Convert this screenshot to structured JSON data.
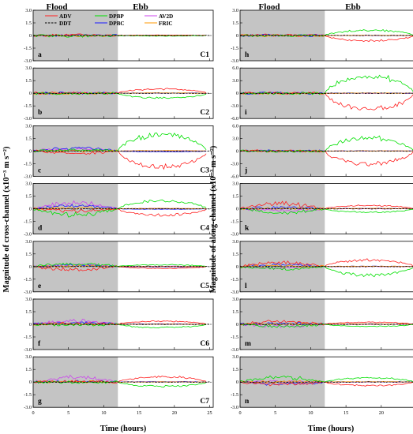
{
  "headers": {
    "left_flood": "Flood",
    "left_ebb": "Ebb",
    "right_flood": "Flood",
    "right_ebb": "Ebb"
  },
  "axes": {
    "left_ylabel": "Magnitude of cross-channel (x10⁻³ m s⁻²)",
    "right_ylabel": "Magnitude of along-channel (x10⁻³ m s⁻²)",
    "xlabel": "Time (hours)"
  },
  "legend": [
    {
      "label": "ADV",
      "color": "#ff2020",
      "dash": false
    },
    {
      "label": "DPBP",
      "color": "#00e000",
      "dash": false
    },
    {
      "label": "AV2D",
      "color": "#cc44ee",
      "dash": false
    },
    {
      "label": "DDT",
      "color": "#000000",
      "dash": true
    },
    {
      "label": "DPBC",
      "color": "#1a1aff",
      "dash": false
    },
    {
      "label": "FRIC",
      "color": "#ff9900",
      "dash": false
    }
  ],
  "chart_data": {
    "type": "line",
    "x_range": [
      0,
      25.5
    ],
    "x_ticks": [
      0,
      5,
      10,
      15,
      20,
      25
    ],
    "flood_shading_end": 12,
    "panels": [
      {
        "letter": "a",
        "tag": "C1",
        "column": "left",
        "ylim": [
          -3,
          3
        ],
        "y_ticks": [
          "3.0",
          "1.5",
          "0",
          "-1.5",
          "-3.0"
        ],
        "series": {
          "ADV": {
            "flood": 0.08,
            "ebb": 0.05
          },
          "DPBP": {
            "flood": -0.08,
            "ebb": -0.06
          },
          "AV2D": {
            "flood": 0.02,
            "ebb": 0.0
          },
          "DDT": {
            "flood": 0.0,
            "ebb": 0.0
          },
          "DPBC": {
            "flood": 0.04,
            "ebb": 0.02
          },
          "FRIC": {
            "flood": -0.03,
            "ebb": 0.02
          }
        }
      },
      {
        "letter": "b",
        "tag": "C2",
        "column": "left",
        "ylim": [
          -3,
          3
        ],
        "y_ticks": [
          "3.0",
          "1.5",
          "0",
          "-1.5",
          "-3.0"
        ],
        "series": {
          "ADV": {
            "flood": 0.05,
            "ebb": 0.6
          },
          "DPBP": {
            "flood": -0.05,
            "ebb": -0.65
          },
          "AV2D": {
            "flood": 0.02,
            "ebb": 0.02
          },
          "DDT": {
            "flood": 0.0,
            "ebb": 0.0
          },
          "DPBC": {
            "flood": 0.05,
            "ebb": 0.05
          },
          "FRIC": {
            "flood": -0.02,
            "ebb": 0.04
          }
        }
      },
      {
        "letter": "c",
        "tag": "C3",
        "column": "left",
        "ylim": [
          -3,
          3
        ],
        "y_ticks": [
          "3.0",
          "1.5",
          "0",
          "-1.5",
          "-3.0"
        ],
        "series": {
          "ADV": {
            "flood": -0.35,
            "ebb": -2.2
          },
          "DPBP": {
            "flood": 0.15,
            "ebb": 2.3
          },
          "AV2D": {
            "flood": 0.3,
            "ebb": 0.05
          },
          "DDT": {
            "flood": 0.0,
            "ebb": 0.0
          },
          "DPBC": {
            "flood": 0.45,
            "ebb": -0.1
          },
          "FRIC": {
            "flood": 0.0,
            "ebb": 0.05
          }
        }
      },
      {
        "letter": "d",
        "tag": "C4",
        "column": "left",
        "ylim": [
          -3,
          3
        ],
        "y_ticks": [
          "3.0",
          "1.5",
          "0",
          "-1.5",
          "-3.0"
        ],
        "series": {
          "ADV": {
            "flood": -0.35,
            "ebb": -0.9
          },
          "DPBP": {
            "flood": -0.9,
            "ebb": 1.1
          },
          "AV2D": {
            "flood": 0.9,
            "ebb": 0.05
          },
          "DDT": {
            "flood": 0.0,
            "ebb": 0.0
          },
          "DPBC": {
            "flood": 0.5,
            "ebb": -0.05
          },
          "FRIC": {
            "flood": 0.15,
            "ebb": 0.05
          }
        }
      },
      {
        "letter": "e",
        "tag": "C5",
        "column": "left",
        "ylim": [
          -3,
          3
        ],
        "y_ticks": [
          "3.0",
          "1.5",
          "0",
          "-1.5",
          "-3.0"
        ],
        "series": {
          "ADV": {
            "flood": -0.5,
            "ebb": -0.25
          },
          "DPBP": {
            "flood": 0.45,
            "ebb": 0.25
          },
          "AV2D": {
            "flood": 0.25,
            "ebb": 0.05
          },
          "DDT": {
            "flood": 0.0,
            "ebb": 0.0
          },
          "DPBC": {
            "flood": 0.2,
            "ebb": -0.05
          },
          "FRIC": {
            "flood": 0.05,
            "ebb": 0.02
          }
        }
      },
      {
        "letter": "f",
        "tag": "C6",
        "column": "left",
        "ylim": [
          -3,
          3
        ],
        "y_ticks": [
          "3.0",
          "1.5",
          "0",
          "-1.5",
          "-3.0"
        ],
        "series": {
          "ADV": {
            "flood": 0.15,
            "ebb": 0.45
          },
          "DPBP": {
            "flood": -0.1,
            "ebb": -0.45
          },
          "AV2D": {
            "flood": 0.55,
            "ebb": 0.05
          },
          "DDT": {
            "flood": 0.0,
            "ebb": 0.0
          },
          "DPBC": {
            "flood": 0.25,
            "ebb": 0.05
          },
          "FRIC": {
            "flood": 0.05,
            "ebb": 0.02
          }
        }
      },
      {
        "letter": "g",
        "tag": "C7",
        "column": "left",
        "ylim": [
          -3,
          3
        ],
        "y_ticks": [
          "3.0",
          "1.5",
          "0",
          "-1.5",
          "-3.0"
        ],
        "series": {
          "ADV": {
            "flood": 0.1,
            "ebb": 0.75
          },
          "DPBP": {
            "flood": -0.05,
            "ebb": -0.6
          },
          "AV2D": {
            "flood": 0.75,
            "ebb": 0.05
          },
          "DDT": {
            "flood": 0.0,
            "ebb": 0.0
          },
          "DPBC": {
            "flood": 0.1,
            "ebb": 0.05
          },
          "FRIC": {
            "flood": 0.05,
            "ebb": 0.02
          }
        }
      },
      {
        "letter": "h",
        "tag": "",
        "column": "right",
        "ylim": [
          -3,
          3
        ],
        "y_ticks": [
          "3.0",
          "1.5",
          "0",
          "-1.5",
          "-3.0"
        ],
        "series": {
          "ADV": {
            "flood": 0.05,
            "ebb": -0.75
          },
          "DPBP": {
            "flood": -0.05,
            "ebb": 0.75
          },
          "AV2D": {
            "flood": 0.0,
            "ebb": 0.0
          },
          "DDT": {
            "flood": 0.0,
            "ebb": 0.0
          },
          "DPBC": {
            "flood": 0.05,
            "ebb": 0.02
          },
          "FRIC": {
            "flood": 0.0,
            "ebb": 0.02
          }
        }
      },
      {
        "letter": "i",
        "tag": "",
        "column": "right",
        "ylim": [
          -6,
          6
        ],
        "y_ticks": [
          "6.0",
          "3.0",
          "0",
          "-3.0",
          "-6.0"
        ],
        "series": {
          "ADV": {
            "flood": 0.05,
            "ebb": -4.5
          },
          "DPBP": {
            "flood": -0.05,
            "ebb": 4.8
          },
          "AV2D": {
            "flood": 0.0,
            "ebb": 0.0
          },
          "DDT": {
            "flood": 0.0,
            "ebb": 0.0
          },
          "DPBC": {
            "flood": 0.05,
            "ebb": 0.05
          },
          "FRIC": {
            "flood": 0.0,
            "ebb": 0.05
          }
        }
      },
      {
        "letter": "j",
        "tag": "",
        "column": "right",
        "ylim": [
          -6,
          6
        ],
        "y_ticks": [
          "6.0",
          "3.0",
          "0",
          "-3.0",
          "-6.0"
        ],
        "series": {
          "ADV": {
            "flood": 0.05,
            "ebb": -3.6
          },
          "DPBP": {
            "flood": -0.05,
            "ebb": 3.6
          },
          "AV2D": {
            "flood": 0.0,
            "ebb": 0.0
          },
          "DDT": {
            "flood": 0.0,
            "ebb": 0.0
          },
          "DPBC": {
            "flood": 0.05,
            "ebb": 0.05
          },
          "FRIC": {
            "flood": 0.0,
            "ebb": 0.05
          }
        }
      },
      {
        "letter": "k",
        "tag": "",
        "column": "right",
        "ylim": [
          -3,
          3
        ],
        "y_ticks": [
          "3.0",
          "1.5",
          "0",
          "-1.5",
          "-3.0"
        ],
        "series": {
          "ADV": {
            "flood": 0.8,
            "ebb": 0.45
          },
          "DPBP": {
            "flood": -0.6,
            "ebb": -0.5
          },
          "AV2D": {
            "flood": -0.25,
            "ebb": 0.0
          },
          "DDT": {
            "flood": 0.0,
            "ebb": 0.0
          },
          "DPBC": {
            "flood": 0.2,
            "ebb": 0.05
          },
          "FRIC": {
            "flood": 0.05,
            "ebb": 0.05
          }
        }
      },
      {
        "letter": "l",
        "tag": "",
        "column": "right",
        "ylim": [
          -3,
          3
        ],
        "y_ticks": [
          "3.0",
          "1.5",
          "0",
          "-1.5",
          "-3.0"
        ],
        "series": {
          "ADV": {
            "flood": 0.6,
            "ebb": 0.9
          },
          "DPBP": {
            "flood": -0.4,
            "ebb": -1.2
          },
          "AV2D": {
            "flood": -0.2,
            "ebb": 0.0
          },
          "DDT": {
            "flood": 0.0,
            "ebb": 0.0
          },
          "DPBC": {
            "flood": 0.3,
            "ebb": 0.05
          },
          "FRIC": {
            "flood": 0.05,
            "ebb": 0.05
          }
        }
      },
      {
        "letter": "m",
        "tag": "",
        "column": "right",
        "ylim": [
          -3,
          3
        ],
        "y_ticks": [
          "3.0",
          "1.5",
          "0",
          "-1.5",
          "-3.0"
        ],
        "series": {
          "ADV": {
            "flood": 0.5,
            "ebb": 0.3
          },
          "DPBP": {
            "flood": -0.3,
            "ebb": -0.3
          },
          "AV2D": {
            "flood": -0.3,
            "ebb": 0.0
          },
          "DDT": {
            "flood": 0.0,
            "ebb": 0.0
          },
          "DPBC": {
            "flood": 0.15,
            "ebb": 0.05
          },
          "FRIC": {
            "flood": 0.05,
            "ebb": 0.05
          }
        }
      },
      {
        "letter": "n",
        "tag": "",
        "column": "right",
        "ylim": [
          -3,
          3
        ],
        "y_ticks": [
          "3.0",
          "1.5",
          "0",
          "-1.5",
          "-3.0"
        ],
        "series": {
          "ADV": {
            "flood": -0.4,
            "ebb": -0.5
          },
          "DPBP": {
            "flood": 0.75,
            "ebb": 0.6
          },
          "AV2D": {
            "flood": 0.1,
            "ebb": 0.0
          },
          "DDT": {
            "flood": 0.0,
            "ebb": 0.0
          },
          "DPBC": {
            "flood": -0.3,
            "ebb": 0.05
          },
          "FRIC": {
            "flood": 0.05,
            "ebb": 0.05
          }
        }
      }
    ]
  }
}
